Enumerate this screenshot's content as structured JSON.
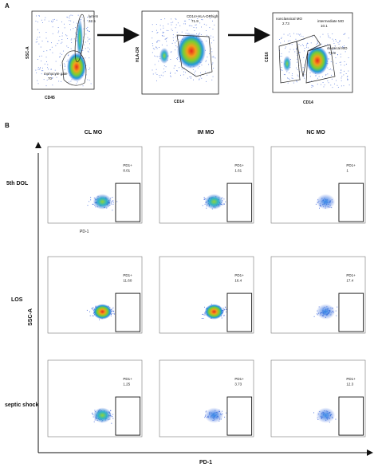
{
  "panel_a": {
    "label": "A",
    "plot1": {
      "x_axis": "CD45",
      "y_axis": "SSC-A",
      "gate_lymph_label": "lym-N",
      "gate_lymph_value": "22.5",
      "gate_mono_label": "monocyte gate",
      "gate_mono_value": "70"
    },
    "plot2": {
      "x_axis": "CD14",
      "y_axis": "HLA-DR",
      "gate_label": "CD14+HLA-DRhigh",
      "gate_value": "71.9"
    },
    "plot3": {
      "x_axis": "CD14",
      "y_axis": "CD16",
      "gate_nc_label": "nonclassical MO",
      "gate_nc_value": "2.73",
      "gate_im_label": "intermediate MO",
      "gate_im_value": "10.1",
      "gate_cl_label": "classical MO",
      "gate_cl_value": "74.8"
    }
  },
  "panel_b": {
    "label": "B",
    "columns": [
      "CL MO",
      "IM MO",
      "NC MO"
    ],
    "rows": [
      "5th DOL",
      "LOS",
      "septic shock"
    ],
    "cell_x_axis": "PD-1",
    "y_axis": "SSC-A",
    "x_axis": "PD-1",
    "gate_values": [
      [
        {
          "label": "PD1+",
          "value": "8.01"
        },
        {
          "label": "PD1+",
          "value": "1.61"
        },
        {
          "label": "PD1+",
          "value": "1"
        }
      ],
      [
        {
          "label": "PD1+",
          "value": "11.60"
        },
        {
          "label": "PD1+",
          "value": "16.4"
        },
        {
          "label": "PD1+",
          "value": "17.4"
        }
      ],
      [
        {
          "label": "PD1+",
          "value": "1.25"
        },
        {
          "label": "PD1+",
          "value": "3.73"
        },
        {
          "label": "PD1+",
          "value": "12.3"
        }
      ]
    ]
  }
}
